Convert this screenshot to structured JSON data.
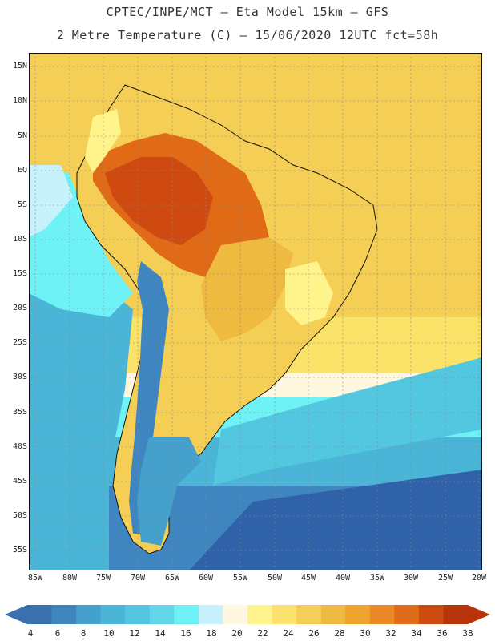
{
  "header": {
    "line1": "CPTEC/INPE/MCT –  Eta Model 15km – GFS",
    "line2": "2 Metre Temperature (C) – 15/06/2020 12UTC fct=58h"
  },
  "map": {
    "lat_labels": [
      "15N",
      "10N",
      "5N",
      "EQ",
      "5S",
      "10S",
      "15S",
      "20S",
      "25S",
      "30S",
      "35S",
      "40S",
      "45S",
      "50S",
      "55S"
    ],
    "lon_labels": [
      "85W",
      "80W",
      "75W",
      "70W",
      "65W",
      "60W",
      "55W",
      "50W",
      "45W",
      "40W",
      "35W",
      "30W",
      "25W",
      "20W"
    ]
  },
  "colorbar": {
    "ticks": [
      "4",
      "6",
      "8",
      "10",
      "12",
      "14",
      "16",
      "18",
      "20",
      "22",
      "24",
      "26",
      "28",
      "30",
      "32",
      "34",
      "36",
      "38"
    ],
    "colors": [
      "#3a6fb0",
      "#3f86c0",
      "#45a0cc",
      "#4ab5d6",
      "#54c7e0",
      "#5fd9ea",
      "#6ef2f6",
      "#c8f2fb",
      "#fff8e0",
      "#fff38c",
      "#fbe36a",
      "#f5cf55",
      "#eeba3f",
      "#f0a42a",
      "#eb8a24",
      "#e06a16",
      "#cf4a10",
      "#b8330a"
    ],
    "under_color": "#3a6fb0",
    "over_color": "#b8330a"
  }
}
